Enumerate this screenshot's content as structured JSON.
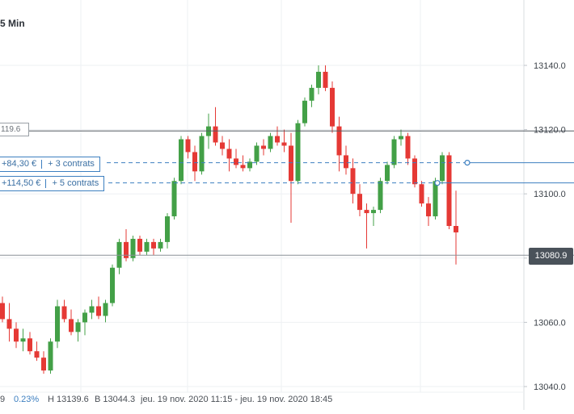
{
  "chart_data": {
    "type": "candlestick",
    "interval": "5 Min",
    "ylim": [
      13035,
      13165
    ],
    "y_ticks": [
      "13140.0",
      "13120.0",
      "13100.0",
      "13080.0",
      "13060.0",
      "13040.0"
    ],
    "y_tick_values": [
      13140,
      13120,
      13100,
      13080,
      13060,
      13040
    ],
    "current_price": "13080.9",
    "current_price_value": 13080.9,
    "horizontal_line": {
      "label": "119.6",
      "value": 13119.6
    },
    "positions": [
      {
        "pnl": "+84,30 €",
        "contracts": "+ 3 contrats",
        "value": 13109.7
      },
      {
        "pnl": "+114,50 €",
        "contracts": "+ 5 contrats",
        "value": 13103.4
      }
    ],
    "candles": [
      [
        13066,
        13068,
        13060,
        13061
      ],
      [
        13061,
        13066,
        13054,
        13058
      ],
      [
        13058,
        13060,
        13052,
        13054
      ],
      [
        13054,
        13058,
        13051,
        13055
      ],
      [
        13055,
        13057,
        13050,
        13051
      ],
      [
        13051,
        13054,
        13048,
        13049
      ],
      [
        13049,
        13051,
        13044,
        13045
      ],
      [
        13045,
        13055,
        13044,
        13054
      ],
      [
        13054,
        13067,
        13052,
        13065
      ],
      [
        13065,
        13067,
        13060,
        13061
      ],
      [
        13061,
        13064,
        13056,
        13057
      ],
      [
        13057,
        13061,
        13054,
        13060
      ],
      [
        13060,
        13064,
        13056,
        13063
      ],
      [
        13063,
        13067,
        13061,
        13065
      ],
      [
        13065,
        13068,
        13061,
        13062
      ],
      [
        13062,
        13067,
        13060,
        13066
      ],
      [
        13066,
        13078,
        13065,
        13077
      ],
      [
        13077,
        13086,
        13075,
        13085
      ],
      [
        13085,
        13089,
        13079,
        13080
      ],
      [
        13080,
        13087,
        13079,
        13086
      ],
      [
        13086,
        13087,
        13081,
        13082
      ],
      [
        13082,
        13086,
        13081,
        13085
      ],
      [
        13085,
        13086,
        13081,
        13083
      ],
      [
        13083,
        13086,
        13082,
        13085
      ],
      [
        13085,
        13094,
        13083,
        13093
      ],
      [
        13093,
        13105,
        13092,
        13104
      ],
      [
        13104,
        13118,
        13103,
        13117
      ],
      [
        13117,
        13118,
        13111,
        13113
      ],
      [
        13113,
        13115,
        13104,
        13107
      ],
      [
        13107,
        13119,
        13106,
        13118
      ],
      [
        13118,
        13125,
        13114,
        13121
      ],
      [
        13121,
        13127,
        13115,
        13116
      ],
      [
        13116,
        13118,
        13112,
        13114
      ],
      [
        13114,
        13117,
        13107,
        13111
      ],
      [
        13111,
        13114,
        13108,
        13109
      ],
      [
        13109,
        13112,
        13107,
        13108
      ],
      [
        13108,
        13111,
        13107,
        13110
      ],
      [
        13110,
        13116,
        13109,
        13115
      ],
      [
        13115,
        13117,
        13112,
        13114
      ],
      [
        13114,
        13119,
        13113,
        13118
      ],
      [
        13118,
        13121,
        13115,
        13116
      ],
      [
        13116,
        13120,
        13113,
        13115
      ],
      [
        13115,
        13119,
        13091,
        13104
      ],
      [
        13104,
        13123,
        13103,
        13122
      ],
      [
        13122,
        13130,
        13121,
        13129
      ],
      [
        13129,
        13134,
        13127,
        13133
      ],
      [
        13133,
        13140,
        13131,
        13138
      ],
      [
        13138,
        13140,
        13132,
        13133
      ],
      [
        13133,
        13135,
        13119,
        13121
      ],
      [
        13121,
        13124,
        13107,
        13112
      ],
      [
        13112,
        13115,
        13106,
        13108
      ],
      [
        13108,
        13111,
        13097,
        13100
      ],
      [
        13100,
        13103,
        13093,
        13095
      ],
      [
        13095,
        13097,
        13083,
        13094
      ],
      [
        13094,
        13096,
        13090,
        13095
      ],
      [
        13095,
        13105,
        13094,
        13104
      ],
      [
        13104,
        13110,
        13103,
        13109
      ],
      [
        13109,
        13118,
        13108,
        13117
      ],
      [
        13117,
        13120,
        13115,
        13118
      ],
      [
        13118,
        13119,
        13109,
        13111
      ],
      [
        13111,
        13112,
        13102,
        13103
      ],
      [
        13103,
        13104,
        13096,
        13097
      ],
      [
        13097,
        13099,
        13090,
        13093
      ],
      [
        13093,
        13105,
        13092,
        13104
      ],
      [
        13104,
        13113,
        13103,
        13112
      ],
      [
        13112,
        13113,
        13089,
        13090
      ],
      [
        13090,
        13101,
        13078,
        13088
      ]
    ]
  },
  "footer": {
    "partial": "9",
    "change_pct": "0.23%",
    "high": "H 13139.6",
    "bid": "B 13044.3",
    "range": "jeu. 19 nov. 2020 11:15 - jeu. 19 nov. 2020 18:45"
  },
  "colors": {
    "up": "#43a047",
    "down": "#e53935",
    "position": "#3d7fc0",
    "badge": "#4a525a"
  }
}
